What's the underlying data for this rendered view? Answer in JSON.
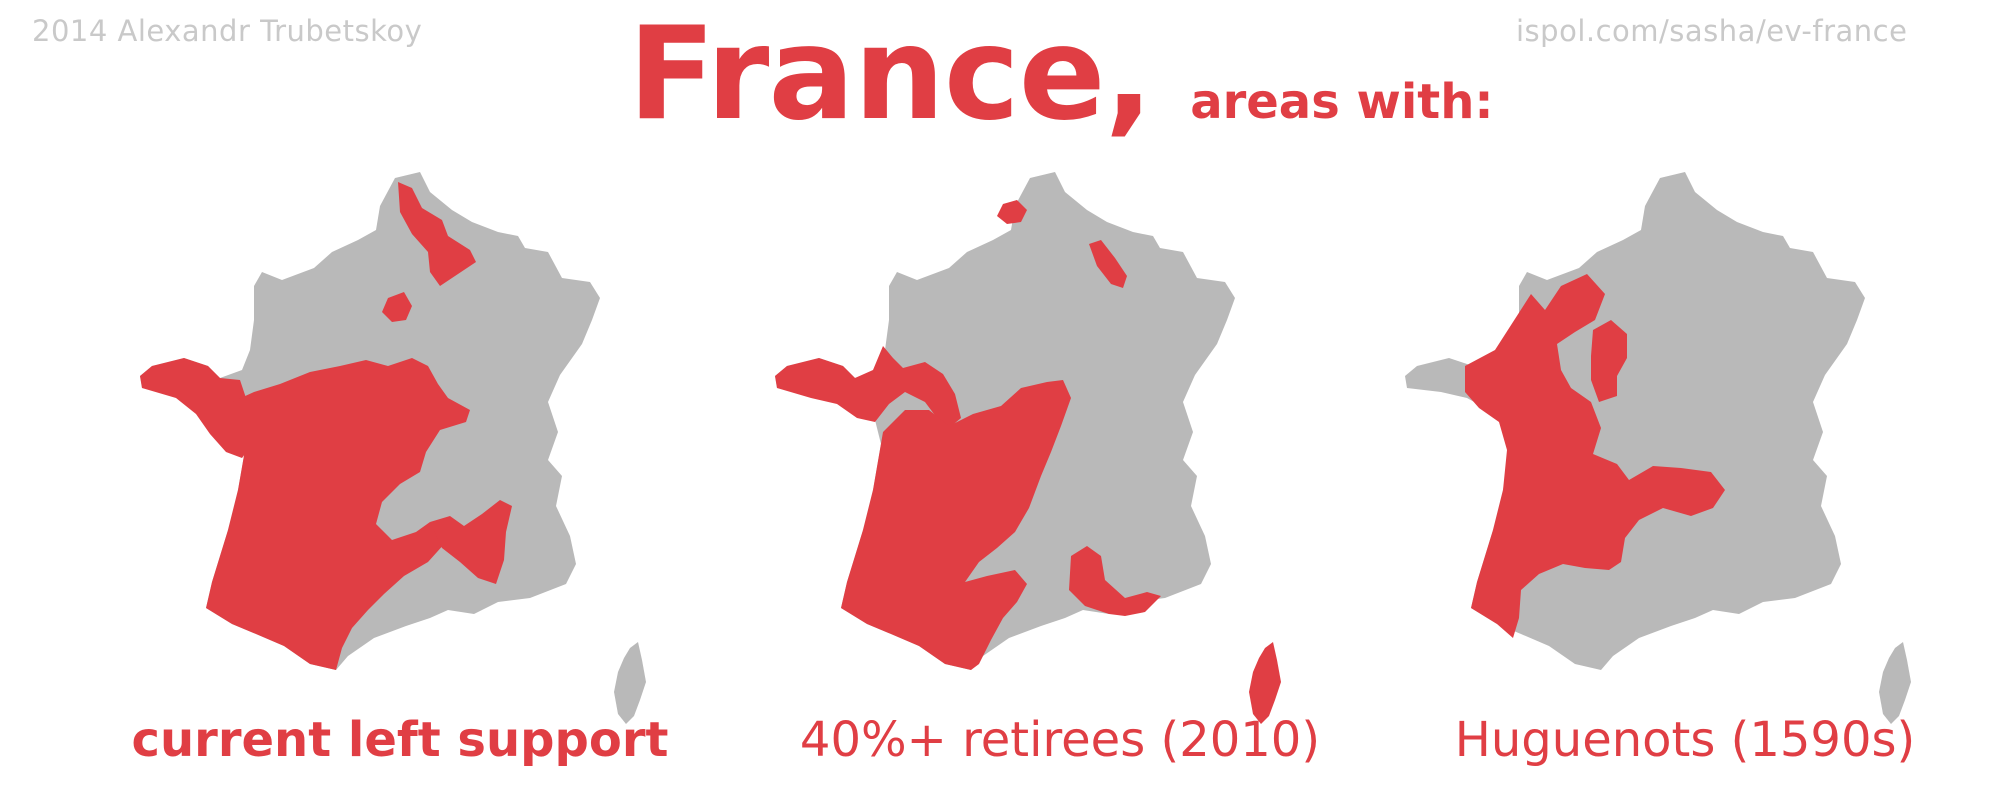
{
  "header": {
    "credit": "2014 Alexandr Trubetskoy",
    "source": "ispol.com/sasha/ev-france",
    "title": "France,",
    "subtitle": "areas with:"
  },
  "colors": {
    "accent": "#e03e44",
    "land": "#b9b9b9",
    "muted_text": "#c9c9c9"
  },
  "maps": [
    {
      "caption": "current left support",
      "caption_weight": "bold"
    },
    {
      "caption": "40%+ retirees (2010)",
      "caption_weight": "normal"
    },
    {
      "caption": "Huguenots (1590s)",
      "caption_weight": "normal"
    }
  ]
}
